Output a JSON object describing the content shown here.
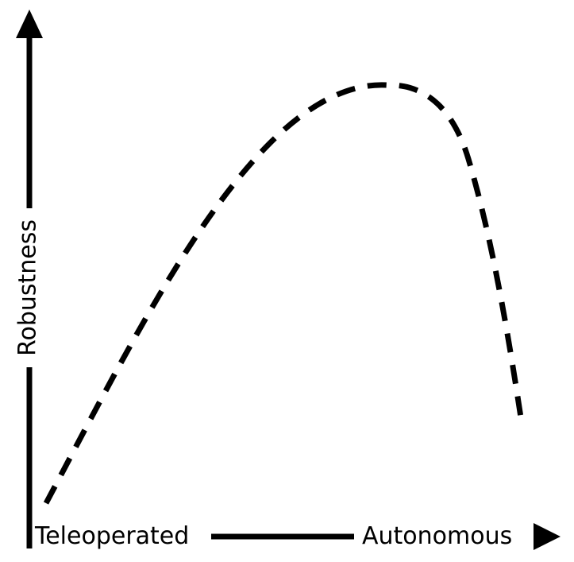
{
  "diagram": {
    "y_axis_label": "Robustness",
    "x_axis_start_label": "Teleoperated",
    "x_axis_end_label": "Autonomous",
    "curve_style": "dashed",
    "colors": {
      "stroke": "#000000",
      "background": "#ffffff"
    }
  }
}
